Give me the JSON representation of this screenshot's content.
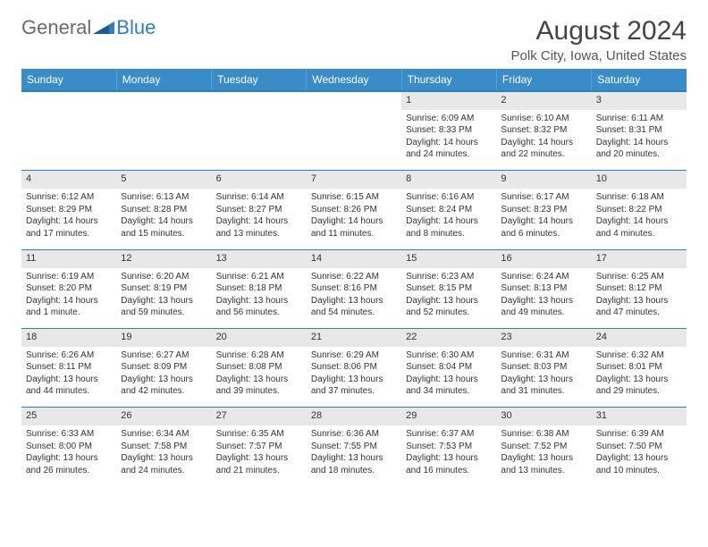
{
  "logo": {
    "text1": "General",
    "text2": "Blue"
  },
  "title": "August 2024",
  "location": "Polk City, Iowa, United States",
  "colors": {
    "header_bg": "#3a8cc9",
    "rule": "#2f7fbf",
    "shade": "#e8e8e8",
    "text": "#333333"
  },
  "dayNames": [
    "Sunday",
    "Monday",
    "Tuesday",
    "Wednesday",
    "Thursday",
    "Friday",
    "Saturday"
  ],
  "weeks": [
    [
      null,
      null,
      null,
      null,
      {
        "n": "1",
        "sr": "6:09 AM",
        "ss": "8:33 PM",
        "dl": "14 hours and 24 minutes."
      },
      {
        "n": "2",
        "sr": "6:10 AM",
        "ss": "8:32 PM",
        "dl": "14 hours and 22 minutes."
      },
      {
        "n": "3",
        "sr": "6:11 AM",
        "ss": "8:31 PM",
        "dl": "14 hours and 20 minutes."
      }
    ],
    [
      {
        "n": "4",
        "sr": "6:12 AM",
        "ss": "8:29 PM",
        "dl": "14 hours and 17 minutes."
      },
      {
        "n": "5",
        "sr": "6:13 AM",
        "ss": "8:28 PM",
        "dl": "14 hours and 15 minutes."
      },
      {
        "n": "6",
        "sr": "6:14 AM",
        "ss": "8:27 PM",
        "dl": "14 hours and 13 minutes."
      },
      {
        "n": "7",
        "sr": "6:15 AM",
        "ss": "8:26 PM",
        "dl": "14 hours and 11 minutes."
      },
      {
        "n": "8",
        "sr": "6:16 AM",
        "ss": "8:24 PM",
        "dl": "14 hours and 8 minutes."
      },
      {
        "n": "9",
        "sr": "6:17 AM",
        "ss": "8:23 PM",
        "dl": "14 hours and 6 minutes."
      },
      {
        "n": "10",
        "sr": "6:18 AM",
        "ss": "8:22 PM",
        "dl": "14 hours and 4 minutes."
      }
    ],
    [
      {
        "n": "11",
        "sr": "6:19 AM",
        "ss": "8:20 PM",
        "dl": "14 hours and 1 minute."
      },
      {
        "n": "12",
        "sr": "6:20 AM",
        "ss": "8:19 PM",
        "dl": "13 hours and 59 minutes."
      },
      {
        "n": "13",
        "sr": "6:21 AM",
        "ss": "8:18 PM",
        "dl": "13 hours and 56 minutes."
      },
      {
        "n": "14",
        "sr": "6:22 AM",
        "ss": "8:16 PM",
        "dl": "13 hours and 54 minutes."
      },
      {
        "n": "15",
        "sr": "6:23 AM",
        "ss": "8:15 PM",
        "dl": "13 hours and 52 minutes."
      },
      {
        "n": "16",
        "sr": "6:24 AM",
        "ss": "8:13 PM",
        "dl": "13 hours and 49 minutes."
      },
      {
        "n": "17",
        "sr": "6:25 AM",
        "ss": "8:12 PM",
        "dl": "13 hours and 47 minutes."
      }
    ],
    [
      {
        "n": "18",
        "sr": "6:26 AM",
        "ss": "8:11 PM",
        "dl": "13 hours and 44 minutes."
      },
      {
        "n": "19",
        "sr": "6:27 AM",
        "ss": "8:09 PM",
        "dl": "13 hours and 42 minutes."
      },
      {
        "n": "20",
        "sr": "6:28 AM",
        "ss": "8:08 PM",
        "dl": "13 hours and 39 minutes."
      },
      {
        "n": "21",
        "sr": "6:29 AM",
        "ss": "8:06 PM",
        "dl": "13 hours and 37 minutes."
      },
      {
        "n": "22",
        "sr": "6:30 AM",
        "ss": "8:04 PM",
        "dl": "13 hours and 34 minutes."
      },
      {
        "n": "23",
        "sr": "6:31 AM",
        "ss": "8:03 PM",
        "dl": "13 hours and 31 minutes."
      },
      {
        "n": "24",
        "sr": "6:32 AM",
        "ss": "8:01 PM",
        "dl": "13 hours and 29 minutes."
      }
    ],
    [
      {
        "n": "25",
        "sr": "6:33 AM",
        "ss": "8:00 PM",
        "dl": "13 hours and 26 minutes."
      },
      {
        "n": "26",
        "sr": "6:34 AM",
        "ss": "7:58 PM",
        "dl": "13 hours and 24 minutes."
      },
      {
        "n": "27",
        "sr": "6:35 AM",
        "ss": "7:57 PM",
        "dl": "13 hours and 21 minutes."
      },
      {
        "n": "28",
        "sr": "6:36 AM",
        "ss": "7:55 PM",
        "dl": "13 hours and 18 minutes."
      },
      {
        "n": "29",
        "sr": "6:37 AM",
        "ss": "7:53 PM",
        "dl": "13 hours and 16 minutes."
      },
      {
        "n": "30",
        "sr": "6:38 AM",
        "ss": "7:52 PM",
        "dl": "13 hours and 13 minutes."
      },
      {
        "n": "31",
        "sr": "6:39 AM",
        "ss": "7:50 PM",
        "dl": "13 hours and 10 minutes."
      }
    ]
  ],
  "labels": {
    "sunrise": "Sunrise:",
    "sunset": "Sunset:",
    "daylight": "Daylight:"
  }
}
